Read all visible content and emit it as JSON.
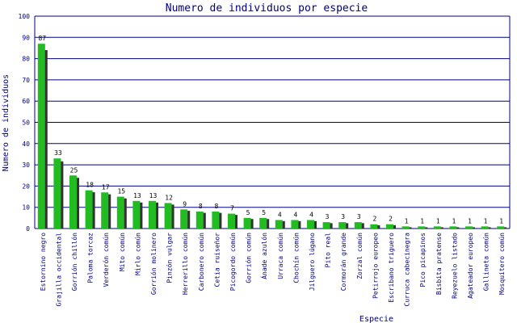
{
  "chart_data": {
    "type": "bar",
    "title": "Numero de individuos por especie",
    "xlabel": "Especie",
    "ylabel": "Numero de individuos",
    "ylim": [
      0,
      100
    ],
    "yticks": [
      0,
      10,
      20,
      30,
      40,
      50,
      60,
      70,
      80,
      90,
      100
    ],
    "grid": true,
    "categories": [
      "Estornino negro",
      "Grajilla occidental",
      "Gorrión chillón",
      "Paloma torcaz",
      "Verderón común",
      "Mito común",
      "Mirlo común",
      "Gorrión molinero",
      "Pinzón vulgar",
      "Herrerillo común",
      "Carbonero común",
      "Cetia ruiseñor",
      "Picogordo común",
      "Gorrión común",
      "Ánade azulón",
      "Urraca común",
      "Chochín común",
      "Jilguero lúgano",
      "Pito real",
      "Cormorán grande",
      "Zorzal común",
      "Petirrojo europeo",
      "Escribano triguero",
      "Curruca cabecinegra",
      "Pico picapinos",
      "Bisbita pratense",
      "Reyezuelo listado",
      "Agateador europeo",
      "Gallineta común",
      "Mosquitero común"
    ],
    "values": [
      87,
      33,
      25,
      18,
      17,
      15,
      13,
      13,
      12,
      9,
      8,
      8,
      7,
      5,
      5,
      4,
      4,
      4,
      3,
      3,
      3,
      2,
      2,
      1,
      1,
      1,
      1,
      1,
      1,
      1
    ],
    "colors": {
      "bar": "#22bb22",
      "shadow": "#333333",
      "grid": "#000080",
      "text": "#000080"
    }
  }
}
